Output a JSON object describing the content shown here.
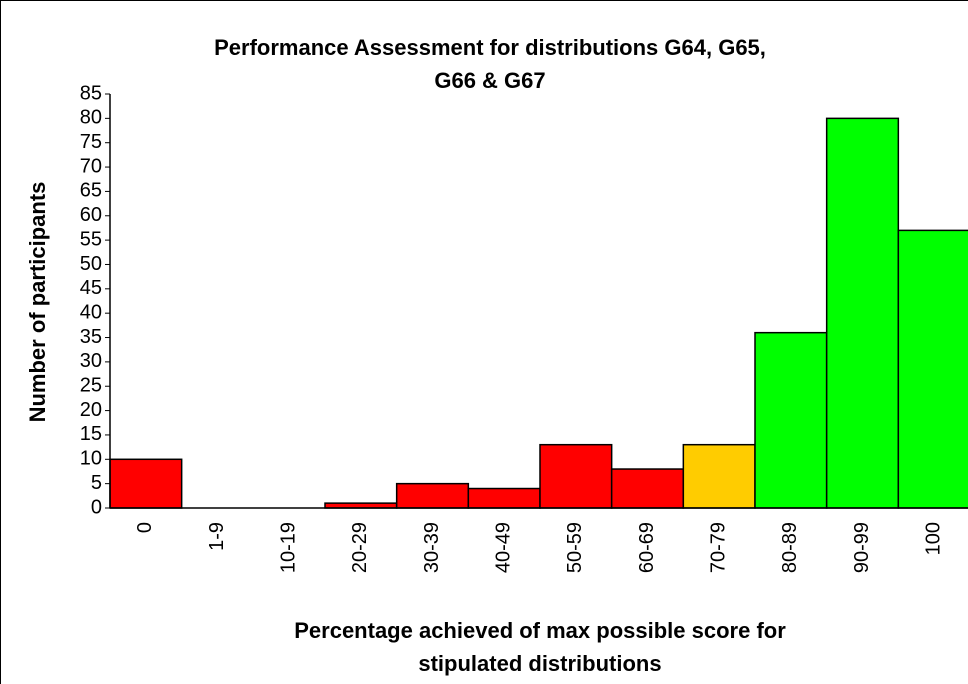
{
  "chart_data": {
    "type": "bar",
    "title": [
      "Performance Assessment for distributions G64,  G65,",
      "G66 & G67"
    ],
    "x_label": [
      "Percentage achieved of max possible score for",
      "stipulated distributions"
    ],
    "y_label": "Number of participants",
    "categories": [
      "0",
      "1-9",
      "10-19",
      "20-29",
      "30-39",
      "40-49",
      "50-59",
      "60-69",
      "70-79",
      "80-89",
      "90-99",
      "100"
    ],
    "values": [
      10,
      0,
      0,
      1,
      5,
      4,
      13,
      8,
      13,
      36,
      80,
      57
    ],
    "colors": [
      "#ff0000",
      "#ff0000",
      "#ff0000",
      "#ff0000",
      "#ff0000",
      "#ff0000",
      "#ff0000",
      "#ff0000",
      "#ffcc00",
      "#00ff00",
      "#00ff00",
      "#00ff00"
    ],
    "ylim": [
      0,
      85
    ],
    "yticks": [
      0,
      5,
      10,
      15,
      20,
      25,
      30,
      35,
      40,
      45,
      50,
      55,
      60,
      65,
      70,
      75,
      80,
      85
    ],
    "grid": false
  }
}
